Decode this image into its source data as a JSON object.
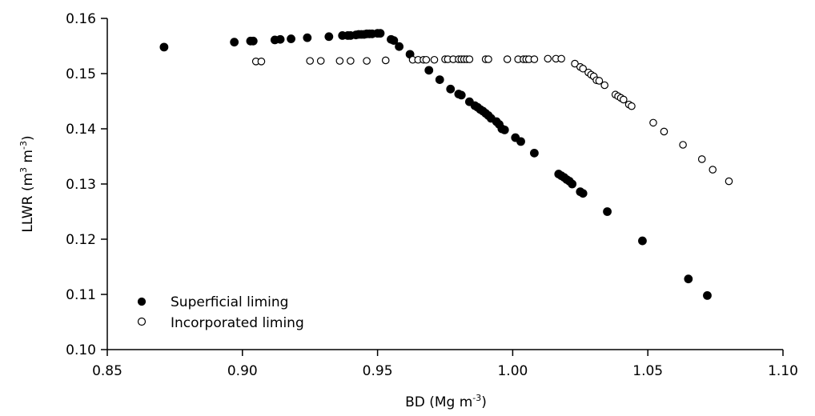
{
  "chart_data": {
    "type": "scatter",
    "xlabel": {
      "text": "BD (Mg m",
      "sup": "-3",
      "close": ")"
    },
    "ylabel": {
      "text": "LLWR (m",
      "sup1": "3",
      "mid": " m",
      "sup2": "-3",
      "close": ")"
    },
    "xlim": [
      0.85,
      1.1
    ],
    "ylim": [
      0.1,
      0.16
    ],
    "xticks": [
      0.85,
      0.9,
      0.95,
      1.0,
      1.05,
      1.1
    ],
    "xtick_labels": [
      "0.85",
      "0.90",
      "0.95",
      "1.00",
      "1.05",
      "1.10"
    ],
    "yticks": [
      0.1,
      0.11,
      0.12,
      0.13,
      0.14,
      0.15,
      0.16
    ],
    "ytick_labels": [
      "0.10",
      "0.11",
      "0.12",
      "0.13",
      "0.14",
      "0.15",
      "0.16"
    ],
    "grid": false,
    "legend_position": "bottom-left",
    "series": [
      {
        "name": "Superficial liming",
        "marker": "filled-circle",
        "color": "#000000",
        "points": [
          [
            0.871,
            0.1548
          ],
          [
            0.897,
            0.1557
          ],
          [
            0.903,
            0.1559
          ],
          [
            0.904,
            0.1559
          ],
          [
            0.912,
            0.1561
          ],
          [
            0.914,
            0.1562
          ],
          [
            0.918,
            0.1563
          ],
          [
            0.924,
            0.1565
          ],
          [
            0.932,
            0.1567
          ],
          [
            0.937,
            0.1569
          ],
          [
            0.939,
            0.1569
          ],
          [
            0.94,
            0.1569
          ],
          [
            0.942,
            0.157
          ],
          [
            0.943,
            0.1571
          ],
          [
            0.944,
            0.1571
          ],
          [
            0.945,
            0.1571
          ],
          [
            0.946,
            0.1572
          ],
          [
            0.947,
            0.1572
          ],
          [
            0.948,
            0.1572
          ],
          [
            0.95,
            0.1573
          ],
          [
            0.951,
            0.1573
          ],
          [
            0.955,
            0.1562
          ],
          [
            0.956,
            0.156
          ],
          [
            0.958,
            0.1549
          ],
          [
            0.962,
            0.1535
          ],
          [
            0.969,
            0.1506
          ],
          [
            0.973,
            0.1489
          ],
          [
            0.977,
            0.1472
          ],
          [
            0.98,
            0.1463
          ],
          [
            0.981,
            0.1461
          ],
          [
            0.984,
            0.1449
          ],
          [
            0.986,
            0.1442
          ],
          [
            0.987,
            0.1439
          ],
          [
            0.988,
            0.1435
          ],
          [
            0.989,
            0.1432
          ],
          [
            0.99,
            0.1428
          ],
          [
            0.991,
            0.1424
          ],
          [
            0.992,
            0.1419
          ],
          [
            0.994,
            0.1413
          ],
          [
            0.995,
            0.1408
          ],
          [
            0.996,
            0.14
          ],
          [
            0.997,
            0.1398
          ],
          [
            1.001,
            0.1384
          ],
          [
            1.003,
            0.1377
          ],
          [
            1.008,
            0.1356
          ],
          [
            1.017,
            0.1318
          ],
          [
            1.018,
            0.1315
          ],
          [
            1.019,
            0.1312
          ],
          [
            1.02,
            0.1308
          ],
          [
            1.021,
            0.1305
          ],
          [
            1.022,
            0.13
          ],
          [
            1.025,
            0.1286
          ],
          [
            1.026,
            0.1283
          ],
          [
            1.035,
            0.125
          ],
          [
            1.048,
            0.1197
          ],
          [
            1.065,
            0.1128
          ],
          [
            1.072,
            0.1098
          ]
        ]
      },
      {
        "name": "Incorporated liming",
        "marker": "open-circle",
        "color": "#000000",
        "points": [
          [
            0.905,
            0.1522
          ],
          [
            0.907,
            0.1522
          ],
          [
            0.925,
            0.1523
          ],
          [
            0.929,
            0.1523
          ],
          [
            0.936,
            0.1523
          ],
          [
            0.94,
            0.1523
          ],
          [
            0.946,
            0.1523
          ],
          [
            0.953,
            0.1524
          ],
          [
            0.963,
            0.1525
          ],
          [
            0.965,
            0.1525
          ],
          [
            0.967,
            0.1525
          ],
          [
            0.968,
            0.1525
          ],
          [
            0.971,
            0.1525
          ],
          [
            0.975,
            0.1526
          ],
          [
            0.976,
            0.1526
          ],
          [
            0.978,
            0.1526
          ],
          [
            0.98,
            0.1526
          ],
          [
            0.981,
            0.1526
          ],
          [
            0.982,
            0.1526
          ],
          [
            0.983,
            0.1526
          ],
          [
            0.984,
            0.1526
          ],
          [
            0.99,
            0.1526
          ],
          [
            0.991,
            0.1526
          ],
          [
            0.998,
            0.1526
          ],
          [
            1.002,
            0.1526
          ],
          [
            1.004,
            0.1526
          ],
          [
            1.005,
            0.1526
          ],
          [
            1.006,
            0.1526
          ],
          [
            1.008,
            0.1526
          ],
          [
            1.013,
            0.1527
          ],
          [
            1.016,
            0.1527
          ],
          [
            1.018,
            0.1527
          ],
          [
            1.023,
            0.1518
          ],
          [
            1.025,
            0.1512
          ],
          [
            1.026,
            0.1509
          ],
          [
            1.028,
            0.1502
          ],
          [
            1.029,
            0.1498
          ],
          [
            1.03,
            0.1495
          ],
          [
            1.031,
            0.1488
          ],
          [
            1.032,
            0.1487
          ],
          [
            1.034,
            0.1479
          ],
          [
            1.038,
            0.1462
          ],
          [
            1.039,
            0.1459
          ],
          [
            1.04,
            0.1456
          ],
          [
            1.041,
            0.1453
          ],
          [
            1.043,
            0.1444
          ],
          [
            1.044,
            0.1441
          ],
          [
            1.052,
            0.1411
          ],
          [
            1.056,
            0.1395
          ],
          [
            1.063,
            0.1371
          ],
          [
            1.07,
            0.1345
          ],
          [
            1.074,
            0.1326
          ],
          [
            1.08,
            0.1305
          ]
        ]
      }
    ]
  }
}
